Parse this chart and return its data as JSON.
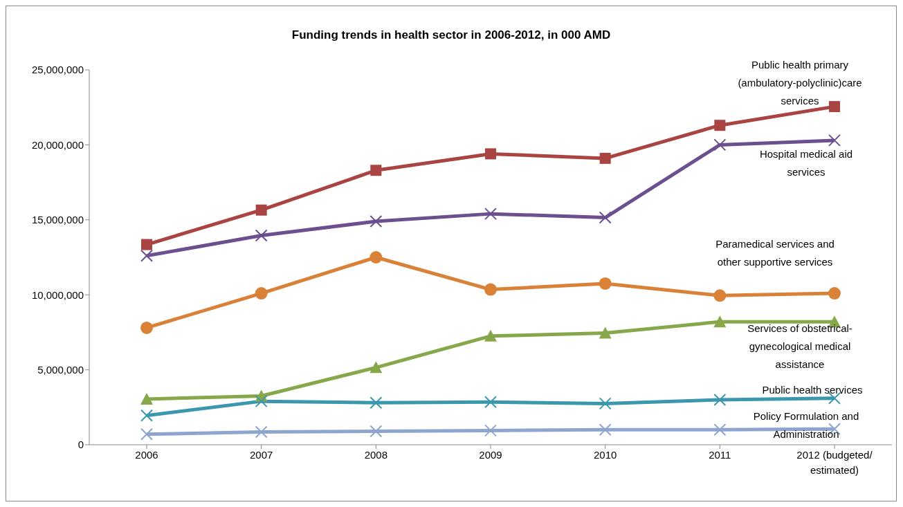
{
  "chart_data": {
    "type": "line",
    "title": "Funding trends in health sector in 2006-2012, in 000 AMD",
    "categories": [
      "2006",
      "2007",
      "2008",
      "2009",
      "2010",
      "2011",
      "2012 (budgeted/ estimated)"
    ],
    "series": [
      {
        "name": "Public health primary (ambulatory-polyclinic)care services",
        "color": "#a94442",
        "marker": "square",
        "values": [
          13350000,
          15650000,
          18300000,
          19400000,
          19100000,
          21300000,
          22550000
        ]
      },
      {
        "name": "Hospital medical aid services",
        "color": "#6b4f8f",
        "marker": "cross",
        "values": [
          12600000,
          13950000,
          14900000,
          15400000,
          15150000,
          20000000,
          20300000
        ]
      },
      {
        "name": "Paramedical services and other supportive services",
        "color": "#d98137",
        "marker": "circle",
        "values": [
          7800000,
          10100000,
          12500000,
          10350000,
          10750000,
          9950000,
          10100000
        ]
      },
      {
        "name": "Services of obstetrical-gynecological medical assistance",
        "color": "#86a74a",
        "marker": "triangle",
        "values": [
          3050000,
          3250000,
          5150000,
          7250000,
          7450000,
          8200000,
          8200000
        ]
      },
      {
        "name": "Public health services",
        "color": "#3b97ad",
        "marker": "cross",
        "values": [
          1950000,
          2900000,
          2800000,
          2850000,
          2750000,
          3000000,
          3100000
        ]
      },
      {
        "name": "Policy Formulation and Administration",
        "color": "#8ea5cf",
        "marker": "cross",
        "values": [
          700000,
          850000,
          900000,
          950000,
          1000000,
          1000000,
          1050000
        ]
      }
    ],
    "ylim": [
      0,
      25000000
    ],
    "yticks": [
      0,
      {
        "value": 5000000,
        "label": "5,000,000"
      },
      {
        "value": 10000000,
        "label": "10,000,000"
      },
      {
        "value": 15000000,
        "label": "15,000,000"
      },
      {
        "value": 20000000,
        "label": "20,000,000"
      },
      {
        "value": 25000000,
        "label": "25,000,000"
      }
    ],
    "grid": false,
    "line_style": "solid"
  }
}
